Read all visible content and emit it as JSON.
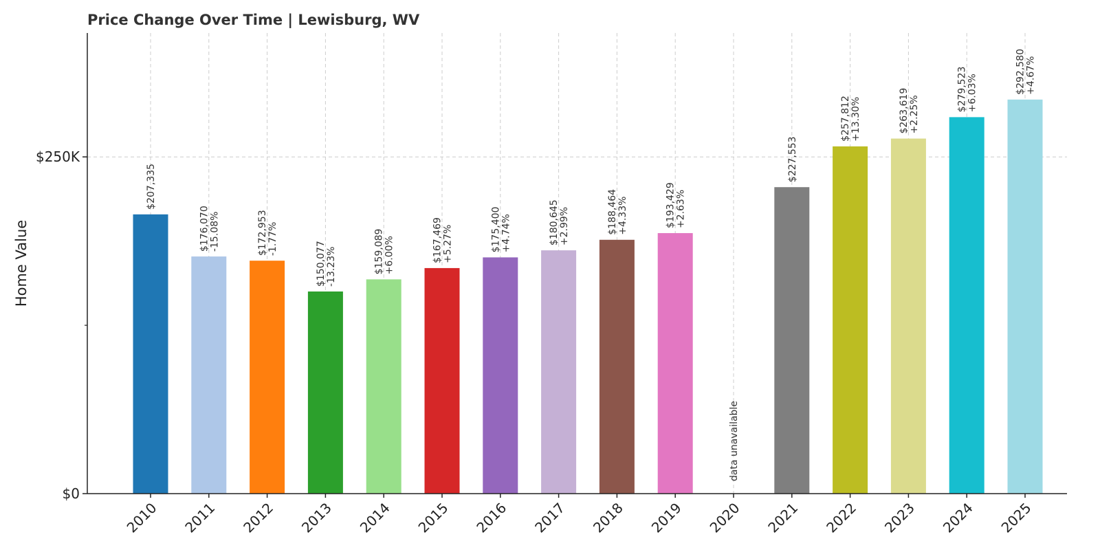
{
  "chart_data": {
    "type": "bar",
    "title": "Price Change Over Time | Lewisburg, WV",
    "xlabel": "",
    "ylabel": "Home Value",
    "ylim": [
      0,
      342000
    ],
    "yticks": [
      {
        "value": 0,
        "label": "$0"
      },
      {
        "value": 250000,
        "label": "$250K"
      }
    ],
    "grid": true,
    "categories": [
      "2010",
      "2011",
      "2012",
      "2013",
      "2014",
      "2015",
      "2016",
      "2017",
      "2018",
      "2019",
      "2020",
      "2021",
      "2022",
      "2023",
      "2024",
      "2025"
    ],
    "values": [
      207335,
      176070,
      172953,
      150077,
      159089,
      167469,
      175400,
      180645,
      188464,
      193429,
      null,
      227553,
      257812,
      263619,
      279523,
      292580
    ],
    "value_labels": [
      "$207,335",
      "$176,070",
      "$172,953",
      "$150,077",
      "$159,089",
      "$167,469",
      "$175,400",
      "$180,645",
      "$188,464",
      "$193,429",
      "data unavailable",
      "$227,553",
      "$257,812",
      "$263,619",
      "$279,523",
      "$292,580"
    ],
    "change_labels": [
      "",
      "-15.08%",
      "-1.77%",
      "-13.23%",
      "+6.00%",
      "+5.27%",
      "+4.74%",
      "+2.99%",
      "+4.33%",
      "+2.63%",
      "",
      "",
      "+13.30%",
      "+2.25%",
      "+6.03%",
      "+4.67%"
    ],
    "colors": [
      "#1f77b4",
      "#aec7e8",
      "#ff7f0e",
      "#2ca02c",
      "#98df8a",
      "#d62728",
      "#9467bd",
      "#c5b0d5",
      "#8c564b",
      "#e377c2",
      "#f7b6d2",
      "#7f7f7f",
      "#bcbd22",
      "#dbdb8d",
      "#17becf",
      "#9edae5"
    ]
  }
}
